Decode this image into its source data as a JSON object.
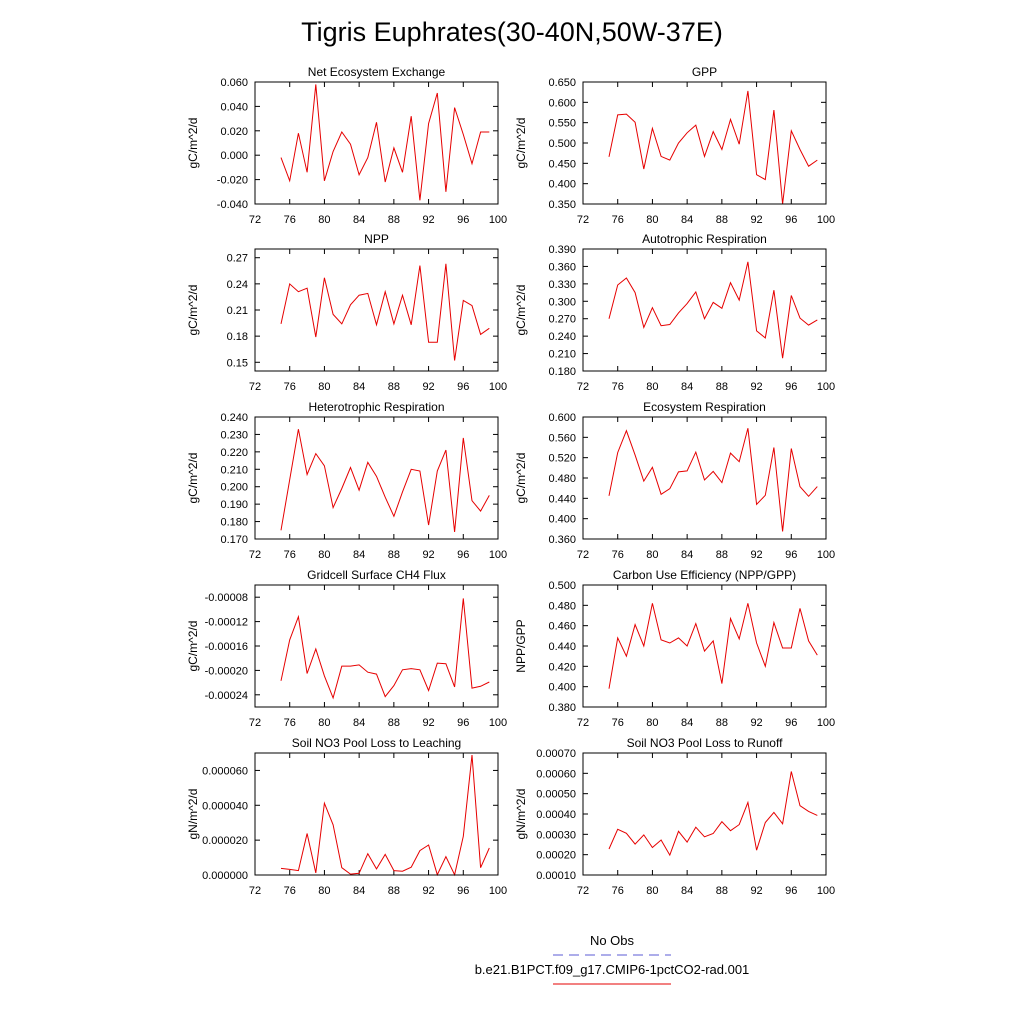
{
  "figure": {
    "title": "Tigris Euphrates(30-40N,50W-37E)",
    "legend": {
      "entries": [
        {
          "label": "No Obs",
          "color": "#5b5bd6",
          "dash": true
        },
        {
          "label": "b.e21.B1PCT.f09_g17.CMIP6-1pctCO2-rad.001",
          "color": "#e60000",
          "dash": false
        }
      ]
    }
  },
  "chart_data": [
    {
      "type": "line",
      "title": "Net Ecosystem Exchange",
      "ylabel": "gC/m^2/d",
      "xlabel": "",
      "xlim": [
        72,
        100
      ],
      "xticks": [
        72,
        76,
        80,
        84,
        88,
        92,
        96,
        100
      ],
      "ylim": [
        -0.04,
        0.06
      ],
      "yticks": [
        -0.04,
        -0.02,
        0,
        0.02,
        0.04,
        0.06
      ],
      "ytick_labels": [
        "-0.040",
        "-0.020",
        "0.000",
        "0.020",
        "0.040",
        "0.060"
      ],
      "series": [
        {
          "color": "#e60000",
          "x": [
            75,
            76,
            77,
            78,
            79,
            80,
            81,
            82,
            83,
            84,
            85,
            86,
            87,
            88,
            89,
            90,
            91,
            92,
            93,
            94,
            95,
            96,
            97,
            98,
            99
          ],
          "y": [
            -0.002,
            -0.021,
            0.018,
            -0.014,
            0.058,
            -0.021,
            0.003,
            0.019,
            0.009,
            -0.016,
            -0.002,
            0.027,
            -0.022,
            0.006,
            -0.014,
            0.032,
            -0.037,
            0.026,
            0.051,
            -0.03,
            0.039,
            0.017,
            -0.007,
            0.019,
            0.019
          ]
        }
      ]
    },
    {
      "type": "line",
      "title": "GPP",
      "ylabel": "gC/m^2/d",
      "xlabel": "",
      "xlim": [
        72,
        100
      ],
      "xticks": [
        72,
        76,
        80,
        84,
        88,
        92,
        96,
        100
      ],
      "ylim": [
        0.35,
        0.65
      ],
      "yticks": [
        0.35,
        0.4,
        0.45,
        0.5,
        0.55,
        0.6,
        0.65
      ],
      "ytick_labels": [
        "0.350",
        "0.400",
        "0.450",
        "0.500",
        "0.550",
        "0.600",
        "0.650"
      ],
      "series": [
        {
          "color": "#e60000",
          "x": [
            75,
            76,
            77,
            78,
            79,
            80,
            81,
            82,
            83,
            84,
            85,
            86,
            87,
            88,
            89,
            90,
            91,
            92,
            93,
            94,
            95,
            96,
            97,
            98,
            99
          ],
          "y": [
            0.466,
            0.569,
            0.571,
            0.551,
            0.436,
            0.536,
            0.467,
            0.458,
            0.5,
            0.525,
            0.544,
            0.467,
            0.528,
            0.484,
            0.558,
            0.497,
            0.628,
            0.422,
            0.41,
            0.581,
            0.35,
            0.53,
            0.484,
            0.443,
            0.458
          ]
        }
      ]
    },
    {
      "type": "line",
      "title": "NPP",
      "ylabel": "gC/m^2/d",
      "xlabel": "",
      "xlim": [
        72,
        100
      ],
      "xticks": [
        72,
        76,
        80,
        84,
        88,
        92,
        96,
        100
      ],
      "ylim": [
        0.14,
        0.28
      ],
      "yticks": [
        0.15,
        0.18,
        0.21,
        0.24,
        0.27
      ],
      "ytick_labels": [
        "0.15",
        "0.18",
        "0.21",
        "0.24",
        "0.27"
      ],
      "series": [
        {
          "color": "#e60000",
          "x": [
            75,
            76,
            77,
            78,
            79,
            80,
            81,
            82,
            83,
            84,
            85,
            86,
            87,
            88,
            89,
            90,
            91,
            92,
            93,
            94,
            95,
            96,
            97,
            98,
            99
          ],
          "y": [
            0.194,
            0.24,
            0.231,
            0.235,
            0.179,
            0.247,
            0.205,
            0.194,
            0.216,
            0.227,
            0.229,
            0.193,
            0.231,
            0.194,
            0.227,
            0.193,
            0.261,
            0.173,
            0.173,
            0.263,
            0.152,
            0.221,
            0.215,
            0.182,
            0.189
          ]
        }
      ]
    },
    {
      "type": "line",
      "title": "Autotrophic Respiration",
      "ylabel": "gC/m^2/d",
      "xlabel": "",
      "xlim": [
        72,
        100
      ],
      "xticks": [
        72,
        76,
        80,
        84,
        88,
        92,
        96,
        100
      ],
      "ylim": [
        0.18,
        0.39
      ],
      "yticks": [
        0.18,
        0.21,
        0.24,
        0.27,
        0.3,
        0.33,
        0.36,
        0.39
      ],
      "ytick_labels": [
        "0.180",
        "0.210",
        "0.240",
        "0.270",
        "0.300",
        "0.330",
        "0.360",
        "0.390"
      ],
      "series": [
        {
          "color": "#e60000",
          "x": [
            75,
            76,
            77,
            78,
            79,
            80,
            81,
            82,
            83,
            84,
            85,
            86,
            87,
            88,
            89,
            90,
            91,
            92,
            93,
            94,
            95,
            96,
            97,
            98,
            99
          ],
          "y": [
            0.27,
            0.328,
            0.34,
            0.315,
            0.255,
            0.289,
            0.258,
            0.26,
            0.28,
            0.296,
            0.316,
            0.27,
            0.298,
            0.288,
            0.332,
            0.302,
            0.368,
            0.249,
            0.237,
            0.319,
            0.202,
            0.31,
            0.271,
            0.259,
            0.268
          ]
        }
      ]
    },
    {
      "type": "line",
      "title": "Heterotrophic Respiration",
      "ylabel": "gC/m^2/d",
      "xlabel": "",
      "xlim": [
        72,
        100
      ],
      "xticks": [
        72,
        76,
        80,
        84,
        88,
        92,
        96,
        100
      ],
      "ylim": [
        0.17,
        0.24
      ],
      "yticks": [
        0.17,
        0.18,
        0.19,
        0.2,
        0.21,
        0.22,
        0.23,
        0.24
      ],
      "ytick_labels": [
        "0.170",
        "0.180",
        "0.190",
        "0.200",
        "0.210",
        "0.220",
        "0.230",
        "0.240"
      ],
      "series": [
        {
          "color": "#e60000",
          "x": [
            75,
            76,
            77,
            78,
            79,
            80,
            81,
            82,
            83,
            84,
            85,
            86,
            87,
            88,
            89,
            90,
            91,
            92,
            93,
            94,
            95,
            96,
            97,
            98,
            99
          ],
          "y": [
            0.175,
            0.204,
            0.233,
            0.207,
            0.219,
            0.212,
            0.188,
            0.199,
            0.211,
            0.198,
            0.214,
            0.206,
            0.194,
            0.183,
            0.197,
            0.21,
            0.209,
            0.178,
            0.209,
            0.221,
            0.174,
            0.228,
            0.192,
            0.186,
            0.195
          ]
        }
      ]
    },
    {
      "type": "line",
      "title": "Ecosystem Respiration",
      "ylabel": "gC/m^2/d",
      "xlabel": "",
      "xlim": [
        72,
        100
      ],
      "xticks": [
        72,
        76,
        80,
        84,
        88,
        92,
        96,
        100
      ],
      "ylim": [
        0.36,
        0.6
      ],
      "yticks": [
        0.36,
        0.4,
        0.44,
        0.48,
        0.52,
        0.56,
        0.6
      ],
      "ytick_labels": [
        "0.360",
        "0.400",
        "0.440",
        "0.480",
        "0.520",
        "0.560",
        "0.600"
      ],
      "series": [
        {
          "color": "#e60000",
          "x": [
            75,
            76,
            77,
            78,
            79,
            80,
            81,
            82,
            83,
            84,
            85,
            86,
            87,
            88,
            89,
            90,
            91,
            92,
            93,
            94,
            95,
            96,
            97,
            98,
            99
          ],
          "y": [
            0.445,
            0.53,
            0.573,
            0.525,
            0.474,
            0.501,
            0.448,
            0.459,
            0.492,
            0.494,
            0.531,
            0.476,
            0.493,
            0.471,
            0.529,
            0.512,
            0.578,
            0.428,
            0.446,
            0.54,
            0.375,
            0.538,
            0.463,
            0.444,
            0.463
          ]
        }
      ]
    },
    {
      "type": "line",
      "title": "Gridcell Surface CH4 Flux",
      "ylabel": "gC/m^2/d",
      "xlabel": "",
      "xlim": [
        72,
        100
      ],
      "xticks": [
        72,
        76,
        80,
        84,
        88,
        92,
        96,
        100
      ],
      "ylim": [
        -0.00026,
        -6e-05
      ],
      "yticks": [
        -0.00024,
        -0.0002,
        -0.00016,
        -0.00012,
        -8e-05
      ],
      "ytick_labels": [
        "-0.00024",
        "-0.00020",
        "-0.00016",
        "-0.00012",
        "-0.00008"
      ],
      "series": [
        {
          "color": "#e60000",
          "x": [
            75,
            76,
            77,
            78,
            79,
            80,
            81,
            82,
            83,
            84,
            85,
            86,
            87,
            88,
            89,
            90,
            91,
            92,
            93,
            94,
            95,
            96,
            97,
            98,
            99
          ],
          "y": [
            -0.000217,
            -0.00015,
            -0.000112,
            -0.000205,
            -0.000165,
            -0.000209,
            -0.000245,
            -0.000193,
            -0.000193,
            -0.000191,
            -0.000203,
            -0.000206,
            -0.000243,
            -0.000225,
            -0.000199,
            -0.000197,
            -0.000199,
            -0.000233,
            -0.000188,
            -0.000189,
            -0.000227,
            -8.2e-05,
            -0.000229,
            -0.000226,
            -0.000219
          ]
        }
      ]
    },
    {
      "type": "line",
      "title": "Carbon Use Efficiency (NPP/GPP)",
      "ylabel": "NPP/GPP",
      "xlabel": "",
      "xlim": [
        72,
        100
      ],
      "xticks": [
        72,
        76,
        80,
        84,
        88,
        92,
        96,
        100
      ],
      "ylim": [
        0.38,
        0.5
      ],
      "yticks": [
        0.38,
        0.4,
        0.42,
        0.44,
        0.46,
        0.48,
        0.5
      ],
      "ytick_labels": [
        "0.380",
        "0.400",
        "0.420",
        "0.440",
        "0.460",
        "0.480",
        "0.500"
      ],
      "series": [
        {
          "color": "#e60000",
          "x": [
            75,
            76,
            77,
            78,
            79,
            80,
            81,
            82,
            83,
            84,
            85,
            86,
            87,
            88,
            89,
            90,
            91,
            92,
            93,
            94,
            95,
            96,
            97,
            98,
            99
          ],
          "y": [
            0.398,
            0.448,
            0.43,
            0.461,
            0.44,
            0.482,
            0.446,
            0.443,
            0.448,
            0.44,
            0.462,
            0.435,
            0.445,
            0.403,
            0.467,
            0.447,
            0.482,
            0.443,
            0.42,
            0.463,
            0.438,
            0.438,
            0.477,
            0.445,
            0.431
          ]
        }
      ]
    },
    {
      "type": "line",
      "title": "Soil NO3 Pool Loss to Leaching",
      "ylabel": "gN/m^2/d",
      "xlabel": "",
      "xlim": [
        72,
        100
      ],
      "xticks": [
        72,
        76,
        80,
        84,
        88,
        92,
        96,
        100
      ],
      "ylim": [
        0,
        7e-05
      ],
      "yticks": [
        0,
        2e-05,
        4e-05,
        6e-05
      ],
      "ytick_labels": [
        "0.000000",
        "0.000020",
        "0.000040",
        "0.000060"
      ],
      "series": [
        {
          "color": "#e60000",
          "x": [
            75,
            76,
            77,
            78,
            79,
            80,
            81,
            82,
            83,
            84,
            85,
            86,
            87,
            88,
            89,
            90,
            91,
            92,
            93,
            94,
            95,
            96,
            97,
            98,
            99
          ],
          "y": [
            3.8e-06,
            3.2e-06,
            2.5e-06,
            2.38e-05,
            1.2e-06,
            4.12e-05,
            2.88e-05,
            4.2e-06,
            5e-07,
            1e-06,
            1.22e-05,
            3.5e-06,
            1.18e-05,
            2.5e-06,
            2.2e-06,
            4.5e-06,
            1.4e-05,
            1.72e-05,
            2e-07,
            1.05e-05,
            2e-07,
            2.22e-05,
            6.88e-05,
            4.2e-06,
            1.55e-05
          ]
        }
      ]
    },
    {
      "type": "line",
      "title": "Soil NO3 Pool Loss to Runoff",
      "ylabel": "gN/m^2/d",
      "xlabel": "",
      "xlim": [
        72,
        100
      ],
      "xticks": [
        72,
        76,
        80,
        84,
        88,
        92,
        96,
        100
      ],
      "ylim": [
        0.0001,
        0.0007
      ],
      "yticks": [
        0.0001,
        0.0002,
        0.0003,
        0.0004,
        0.0005,
        0.0006,
        0.0007
      ],
      "ytick_labels": [
        "0.00010",
        "0.00020",
        "0.00030",
        "0.00040",
        "0.00050",
        "0.00060",
        "0.00070"
      ],
      "series": [
        {
          "color": "#e60000",
          "x": [
            75,
            76,
            77,
            78,
            79,
            80,
            81,
            82,
            83,
            84,
            85,
            86,
            87,
            88,
            89,
            90,
            91,
            92,
            93,
            94,
            95,
            96,
            97,
            98,
            99
          ],
          "y": [
            0.000228,
            0.000325,
            0.000305,
            0.000252,
            0.000297,
            0.000235,
            0.000272,
            0.000198,
            0.000315,
            0.000262,
            0.000335,
            0.000288,
            0.000304,
            0.000362,
            0.000318,
            0.000348,
            0.000457,
            0.000222,
            0.000358,
            0.000408,
            0.000352,
            0.000609,
            0.000441,
            0.000413,
            0.000393
          ]
        }
      ]
    }
  ]
}
